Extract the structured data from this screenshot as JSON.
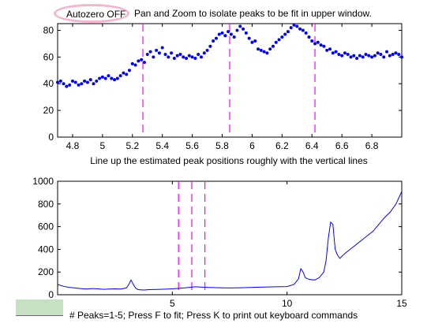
{
  "header": {
    "autozero_label": "Autozero OFF",
    "instruction": "Pan and Zoom to isolate peaks to be fit in upper window."
  },
  "status": {
    "message": "# Peaks=1-5; Press F to fit; Press K to print out keyboard commands"
  },
  "colors": {
    "data": "#0000ff",
    "marker_lines": "#ff00ff",
    "autozero_ring": "#f7b3cf",
    "status_swatch": "#c7dfc2"
  },
  "chart_data": [
    {
      "type": "scatter",
      "xlabel": "Line up the estimated peak positions roughly with the vertical lines",
      "xlim": [
        4.7,
        7.0
      ],
      "ylim": [
        0,
        85
      ],
      "xticks": [
        "4.8",
        "5",
        "5.2",
        "5.4",
        "5.6",
        "5.8",
        "6",
        "6.2",
        "6.4",
        "6.6",
        "6.8"
      ],
      "yticks": [
        "0",
        "20",
        "40",
        "60",
        "80"
      ],
      "vlines": [
        5.27,
        5.85,
        6.42
      ],
      "x": [
        4.7,
        4.72,
        4.74,
        4.76,
        4.78,
        4.8,
        4.82,
        4.84,
        4.86,
        4.88,
        4.9,
        4.92,
        4.94,
        4.96,
        4.98,
        5.0,
        5.02,
        5.04,
        5.06,
        5.08,
        5.1,
        5.12,
        5.14,
        5.16,
        5.18,
        5.2,
        5.22,
        5.24,
        5.26,
        5.28,
        5.3,
        5.32,
        5.34,
        5.36,
        5.38,
        5.4,
        5.42,
        5.44,
        5.46,
        5.48,
        5.5,
        5.52,
        5.54,
        5.56,
        5.58,
        5.6,
        5.62,
        5.64,
        5.66,
        5.68,
        5.7,
        5.72,
        5.74,
        5.76,
        5.78,
        5.8,
        5.82,
        5.84,
        5.86,
        5.88,
        5.9,
        5.92,
        5.94,
        5.96,
        5.98,
        6.0,
        6.02,
        6.04,
        6.06,
        6.08,
        6.1,
        6.12,
        6.14,
        6.16,
        6.18,
        6.2,
        6.22,
        6.24,
        6.26,
        6.28,
        6.3,
        6.32,
        6.34,
        6.36,
        6.38,
        6.4,
        6.42,
        6.44,
        6.46,
        6.48,
        6.5,
        6.52,
        6.54,
        6.56,
        6.58,
        6.6,
        6.62,
        6.64,
        6.66,
        6.68,
        6.7,
        6.72,
        6.74,
        6.76,
        6.78,
        6.8,
        6.82,
        6.84,
        6.86,
        6.88,
        6.9,
        6.92,
        6.94,
        6.96,
        6.98,
        7.0
      ],
      "y": [
        41,
        42,
        40,
        38,
        39,
        42,
        41,
        39,
        40,
        42,
        41,
        43,
        40,
        42,
        44,
        45,
        44,
        46,
        44,
        43,
        44,
        46,
        48,
        47,
        50,
        55,
        54,
        57,
        58,
        56,
        62,
        64,
        60,
        65,
        63,
        67,
        62,
        60,
        63,
        59,
        61,
        62,
        60,
        59,
        61,
        60,
        59,
        62,
        60,
        63,
        65,
        68,
        72,
        74,
        77,
        78,
        76,
        79,
        77,
        75,
        80,
        83,
        81,
        78,
        74,
        71,
        72,
        66,
        65,
        64,
        63,
        66,
        68,
        71,
        73,
        75,
        77,
        79,
        82,
        84,
        83,
        81,
        80,
        78,
        75,
        72,
        70,
        71,
        69,
        68,
        65,
        66,
        63,
        64,
        62,
        61,
        63,
        62,
        60,
        61,
        59,
        61,
        60,
        62,
        61,
        60,
        61,
        63,
        62,
        60,
        64,
        61,
        62,
        63,
        62,
        60
      ]
    },
    {
      "type": "line",
      "xlim": [
        0,
        15
      ],
      "ylim": [
        0,
        1000
      ],
      "xticks": [
        "0",
        "5",
        "10",
        "15"
      ],
      "yticks": [
        "0",
        "200",
        "400",
        "600",
        "800",
        "1000"
      ],
      "vlines": [
        5.27,
        5.85,
        6.42
      ],
      "x": [
        0,
        0.25,
        0.5,
        0.75,
        1.0,
        1.25,
        1.5,
        1.75,
        2.0,
        2.25,
        2.5,
        2.75,
        3.0,
        3.1,
        3.2,
        3.3,
        3.4,
        3.5,
        3.75,
        4.0,
        4.5,
        5.0,
        5.5,
        6.0,
        6.5,
        7.0,
        7.5,
        8.0,
        8.5,
        9.0,
        9.5,
        10.0,
        10.3,
        10.5,
        10.6,
        10.7,
        10.8,
        10.9,
        11.0,
        11.2,
        11.4,
        11.6,
        11.7,
        11.8,
        11.9,
        12.0,
        12.05,
        12.1,
        12.2,
        12.3,
        12.5,
        12.75,
        13.0,
        13.25,
        13.5,
        13.75,
        14.0,
        14.25,
        14.5,
        14.75,
        15.0
      ],
      "y": [
        90,
        75,
        65,
        60,
        55,
        50,
        55,
        52,
        48,
        50,
        52,
        50,
        60,
        90,
        130,
        90,
        60,
        45,
        42,
        45,
        48,
        52,
        60,
        70,
        65,
        62,
        60,
        62,
        65,
        68,
        70,
        72,
        90,
        140,
        230,
        200,
        150,
        140,
        135,
        130,
        150,
        200,
        300,
        500,
        640,
        620,
        500,
        400,
        350,
        320,
        360,
        400,
        440,
        480,
        520,
        560,
        620,
        680,
        730,
        800,
        910
      ]
    }
  ]
}
